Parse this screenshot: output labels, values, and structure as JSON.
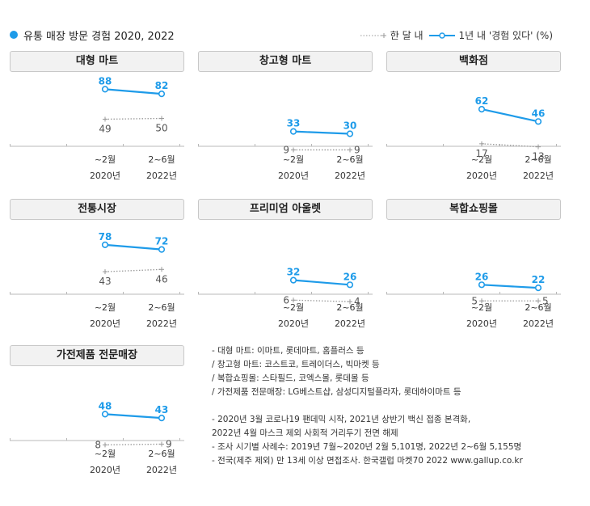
{
  "title": "유통 매장 방문 경험 2020, 2022",
  "legend": {
    "month": "한 달 내",
    "year": "1년 내 '경험 있다' (%)"
  },
  "colors": {
    "year": "#1e9be9",
    "month": "#999999"
  },
  "chart_data": [
    {
      "type": "line",
      "title": "대형 마트",
      "categories": [
        "~2월 2020년",
        "2~6월 2022년"
      ],
      "series": [
        {
          "name": "1년 내 '경험 있다'",
          "values": [
            88,
            82
          ]
        },
        {
          "name": "한 달 내",
          "values": [
            49,
            50
          ]
        }
      ]
    },
    {
      "type": "line",
      "title": "창고형 마트",
      "categories": [
        "~2월 2020년",
        "2~6월 2022년"
      ],
      "series": [
        {
          "name": "1년 내 '경험 있다'",
          "values": [
            33,
            30
          ]
        },
        {
          "name": "한 달 내",
          "values": [
            9,
            9
          ]
        }
      ]
    },
    {
      "type": "line",
      "title": "백화점",
      "categories": [
        "~2월 2020년",
        "2~6월 2022년"
      ],
      "series": [
        {
          "name": "1년 내 '경험 있다'",
          "values": [
            62,
            46
          ]
        },
        {
          "name": "한 달 내",
          "values": [
            17,
            13
          ]
        }
      ]
    },
    {
      "type": "line",
      "title": "전통시장",
      "categories": [
        "~2월 2020년",
        "2~6월 2022년"
      ],
      "series": [
        {
          "name": "1년 내 '경험 있다'",
          "values": [
            78,
            72
          ]
        },
        {
          "name": "한 달 내",
          "values": [
            43,
            46
          ]
        }
      ]
    },
    {
      "type": "line",
      "title": "프리미엄 아울렛",
      "categories": [
        "~2월 2020년",
        "2~6월 2022년"
      ],
      "series": [
        {
          "name": "1년 내 '경험 있다'",
          "values": [
            32,
            26
          ]
        },
        {
          "name": "한 달 내",
          "values": [
            6,
            4
          ]
        }
      ]
    },
    {
      "type": "line",
      "title": "복합쇼핑몰",
      "categories": [
        "~2월 2020년",
        "2~6월 2022년"
      ],
      "series": [
        {
          "name": "1년 내 '경험 있다'",
          "values": [
            26,
            22
          ]
        },
        {
          "name": "한 달 내",
          "values": [
            5,
            5
          ]
        }
      ]
    },
    {
      "type": "line",
      "title": "가전제품 전문매장",
      "categories": [
        "~2월 2020년",
        "2~6월 2022년"
      ],
      "series": [
        {
          "name": "1년 내 '경험 있다'",
          "values": [
            48,
            43
          ]
        },
        {
          "name": "한 달 내",
          "values": [
            8,
            9
          ]
        }
      ]
    }
  ],
  "x_labels": [
    {
      "period": "~2월",
      "year": "2020년"
    },
    {
      "period": "2~6월",
      "year": "2022년"
    }
  ],
  "notes": [
    "- 대형 마트: 이마트, 롯데마트, 홈플러스 등",
    "  / 창고형 마트: 코스트코, 트레이더스, 빅마켓 등",
    "  / 복합쇼핑몰: 스타필드, 코엑스몰, 롯데몰 등",
    "  / 가전제품 전문매장: LG베스트샵, 삼성디지털플라자, 롯데하이마트 등",
    "",
    "- 2020년 3월 코로나19 팬데믹 시작, 2021년 상반기 백신 접종 본격화,",
    "  2022년 4월 마스크 제외 사회적 거리두기 전면 해제",
    "- 조사 시기별 사례수: 2019년 7월~2020년 2월 5,101명, 2022년 2~6월 5,155명",
    "- 전국(제주 제외) 만 13세 이상 면접조사. 한국갤럽 마켓70 2022 www.gallup.co.kr"
  ]
}
